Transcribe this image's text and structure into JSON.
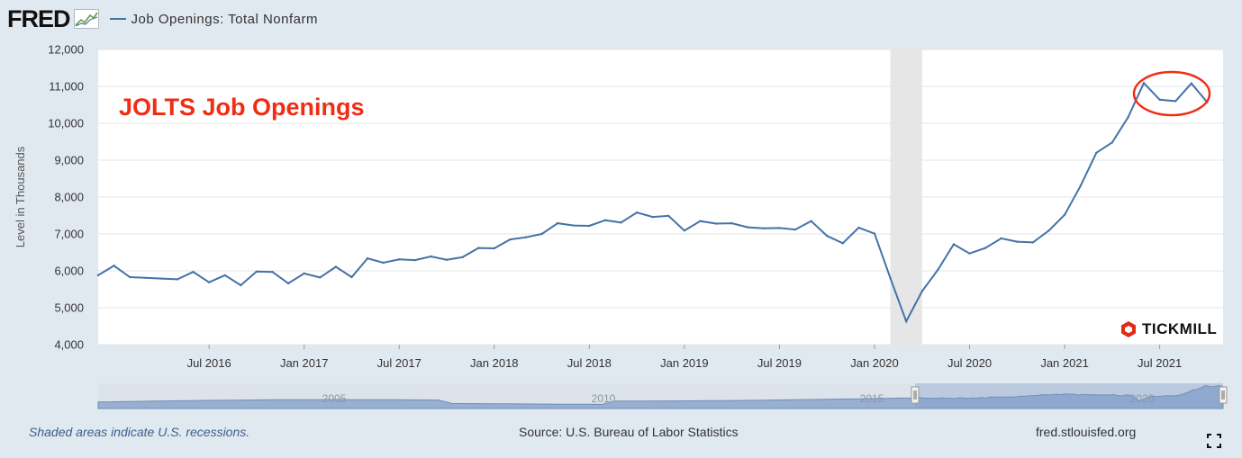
{
  "header": {
    "logo_text": "FRED",
    "series_title": "Job Openings: Total Nonfarm"
  },
  "annotation": {
    "overlay_title": "JOLTS Job Openings",
    "overlay_color": "#f02d14"
  },
  "watermark": {
    "text": "TICKMILL"
  },
  "footer": {
    "recession_note": "Shaded areas indicate U.S. recessions.",
    "source": "Source: U.S. Bureau of Labor Statistics",
    "site": "fred.stlouisfed.org"
  },
  "navigator": {
    "year_labels": [
      "2005",
      "2010",
      "2015",
      "2020"
    ]
  },
  "colors": {
    "line": "#4572a7",
    "recession_shade": "#e6e6e6",
    "page_bg": "#e1e9f0"
  },
  "chart_data": {
    "type": "line",
    "title": "",
    "xlabel": "",
    "ylabel": "Level in Thousands",
    "ylim": [
      4000,
      12000
    ],
    "yticks": [
      4000,
      5000,
      6000,
      7000,
      8000,
      9000,
      10000,
      11000,
      12000
    ],
    "ytick_labels": [
      "4,000",
      "5,000",
      "6,000",
      "7,000",
      "8,000",
      "9,000",
      "10,000",
      "11,000",
      "12,000"
    ],
    "xlim": [
      "2015-12",
      "2021-11"
    ],
    "xticks": [
      "2016-07",
      "2017-01",
      "2017-07",
      "2018-01",
      "2018-07",
      "2019-01",
      "2019-07",
      "2020-01",
      "2020-07",
      "2021-01",
      "2021-07"
    ],
    "xtick_labels": [
      "Jul 2016",
      "Jan 2017",
      "Jul 2017",
      "Jan 2018",
      "Jul 2018",
      "Jan 2019",
      "Jul 2019",
      "Jan 2020",
      "Jul 2020",
      "Jan 2021",
      "Jul 2021"
    ],
    "recessions": [
      [
        "2020-02",
        "2020-04"
      ]
    ],
    "grid": true,
    "series": [
      {
        "name": "Job Openings: Total Nonfarm",
        "x": [
          "2015-12",
          "2016-01",
          "2016-02",
          "2016-03",
          "2016-04",
          "2016-05",
          "2016-06",
          "2016-07",
          "2016-08",
          "2016-09",
          "2016-10",
          "2016-11",
          "2016-12",
          "2017-01",
          "2017-02",
          "2017-03",
          "2017-04",
          "2017-05",
          "2017-06",
          "2017-07",
          "2017-08",
          "2017-09",
          "2017-10",
          "2017-11",
          "2017-12",
          "2018-01",
          "2018-02",
          "2018-03",
          "2018-04",
          "2018-05",
          "2018-06",
          "2018-07",
          "2018-08",
          "2018-09",
          "2018-10",
          "2018-11",
          "2018-12",
          "2019-01",
          "2019-02",
          "2019-03",
          "2019-04",
          "2019-05",
          "2019-06",
          "2019-07",
          "2019-08",
          "2019-09",
          "2019-10",
          "2019-11",
          "2019-12",
          "2020-01",
          "2020-02",
          "2020-03",
          "2020-04",
          "2020-05",
          "2020-06",
          "2020-07",
          "2020-08",
          "2020-09",
          "2020-10",
          "2020-11",
          "2020-12",
          "2021-01",
          "2021-02",
          "2021-03",
          "2021-04",
          "2021-05",
          "2021-06",
          "2021-07",
          "2021-08",
          "2021-09",
          "2021-10"
        ],
        "values": [
          5880,
          6140,
          5830,
          5810,
          5790,
          5770,
          5970,
          5690,
          5880,
          5610,
          5980,
          5970,
          5660,
          5930,
          5820,
          6110,
          5830,
          6340,
          6220,
          6310,
          6290,
          6390,
          6300,
          6370,
          6620,
          6610,
          6850,
          6910,
          7000,
          7290,
          7230,
          7220,
          7370,
          7310,
          7580,
          7460,
          7490,
          7090,
          7350,
          7280,
          7290,
          7180,
          7150,
          7160,
          7120,
          7350,
          6950,
          6750,
          7170,
          7010,
          5800,
          4630,
          5450,
          6030,
          6720,
          6470,
          6620,
          6880,
          6790,
          6770,
          7090,
          7520,
          8300,
          9200,
          9480,
          10160,
          11090,
          10640,
          10600,
          11080,
          10570
        ]
      }
    ]
  }
}
